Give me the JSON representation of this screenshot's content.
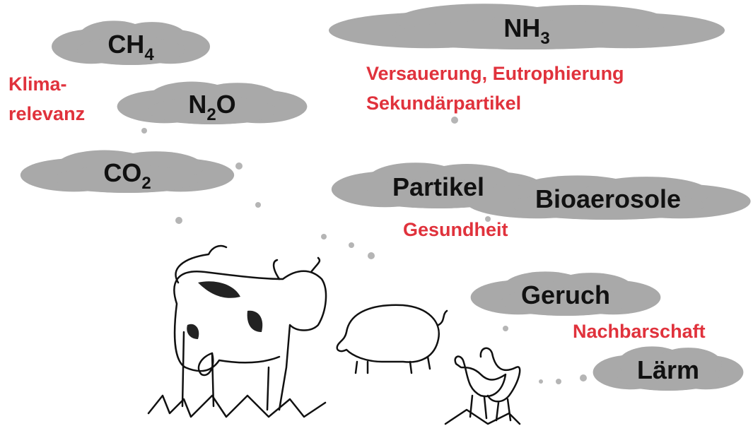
{
  "clouds": [
    {
      "parts": [
        "CH",
        "4"
      ]
    },
    {
      "parts": [
        "N",
        "2",
        "O"
      ]
    },
    {
      "parts": [
        "CO",
        "2"
      ]
    },
    {
      "parts": [
        "NH",
        "3"
      ]
    },
    {
      "parts": [
        "Partikel"
      ]
    },
    {
      "parts": [
        "Bioaerosole"
      ]
    },
    {
      "parts": [
        "Geruch"
      ]
    },
    {
      "parts": [
        "Lärm"
      ]
    }
  ],
  "effects": [
    {
      "lines": [
        "Klima-",
        "relevanz"
      ]
    },
    {
      "lines": [
        "Versauerung, Eutrophierung",
        "Sekundärpartikel"
      ]
    },
    {
      "lines": [
        "Gesundheit"
      ]
    },
    {
      "lines": [
        "Nachbarschaft"
      ]
    }
  ]
}
